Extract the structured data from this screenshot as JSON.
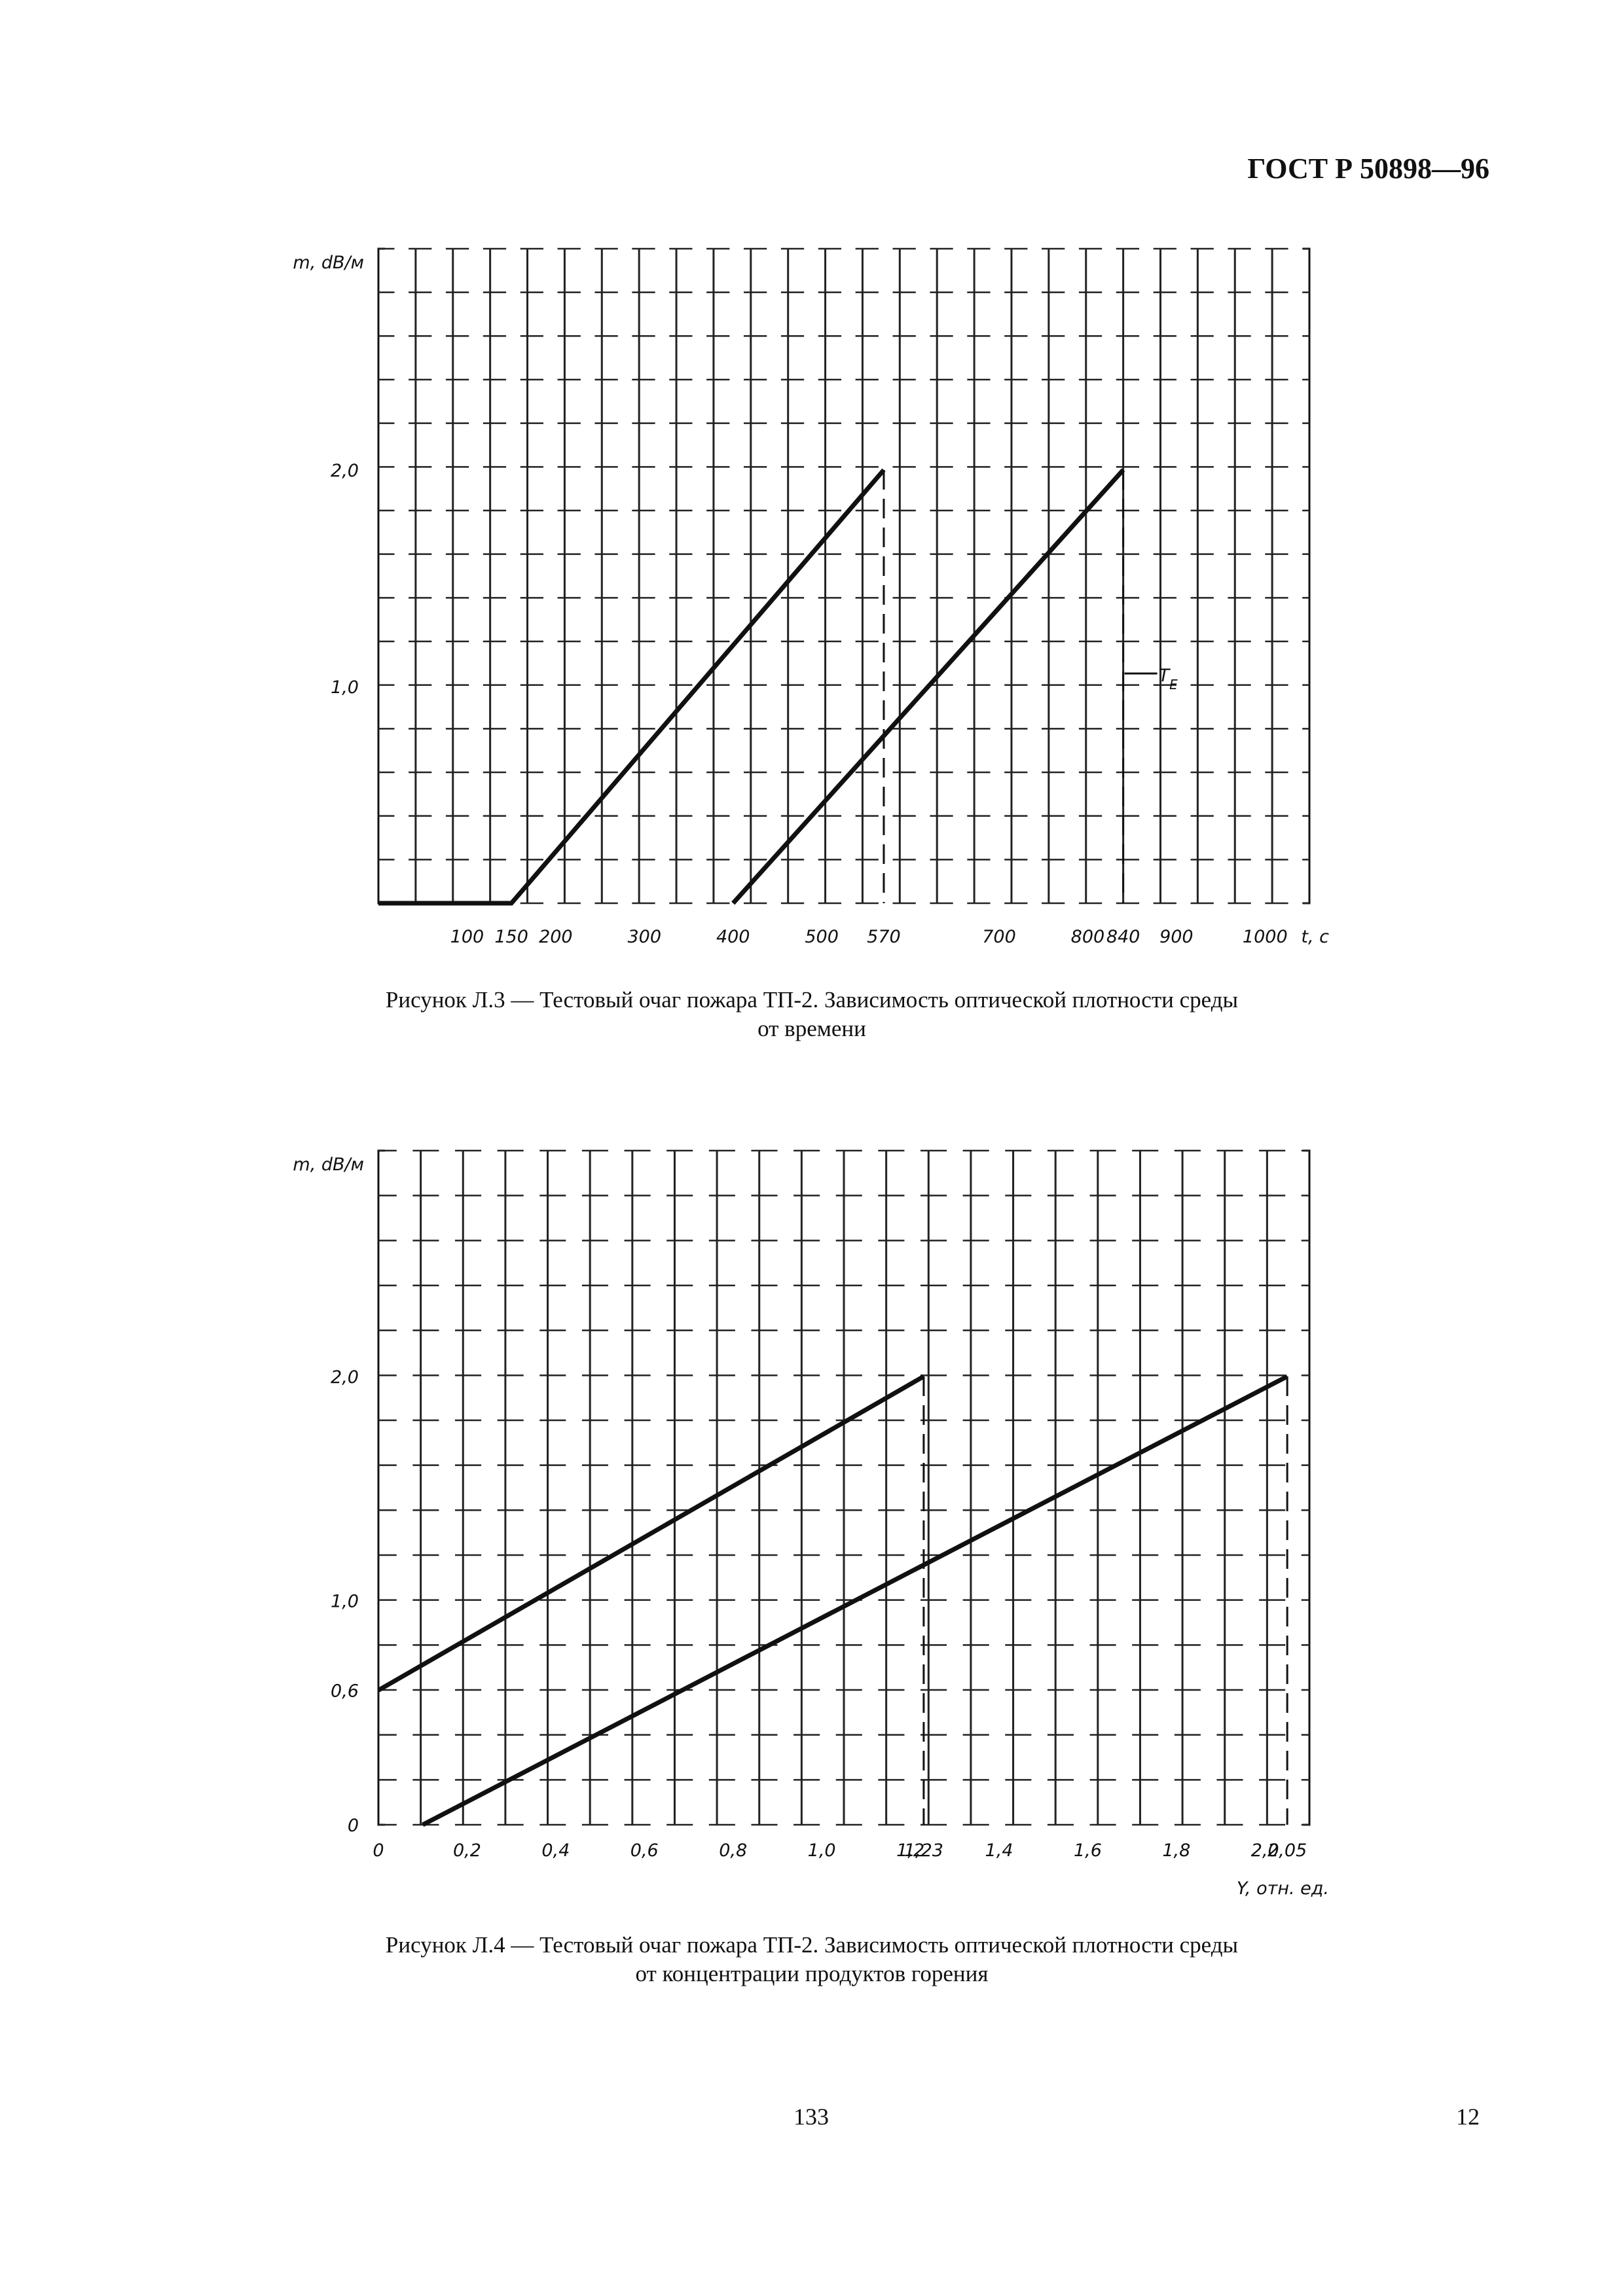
{
  "header": "ГОСТ Р 50898—96",
  "figure1": {
    "caption_line1": "Рисунок Л.3 — Тестовый очаг пожара ТП-2. Зависимость оптической плотности среды",
    "caption_line2": "от времени"
  },
  "figure2": {
    "caption_line1": "Рисунок Л.4 — Тестовый очаг пожара ТП-2. Зависимость оптической плотности среды",
    "caption_line2": "от концентрации продуктов горения"
  },
  "page_number": "133",
  "corner_number": "12",
  "chart_data": [
    {
      "type": "line",
      "title": "",
      "ylabel": "m, dB/м",
      "xlabel": "t, c",
      "xlim": [
        0,
        1050
      ],
      "ylim": [
        0,
        2.0
      ],
      "grid": true,
      "x_ticks": [
        {
          "value": 100,
          "label": "100"
        },
        {
          "value": 150,
          "label": "150"
        },
        {
          "value": 200,
          "label": "200"
        },
        {
          "value": 300,
          "label": "300"
        },
        {
          "value": 400,
          "label": "400"
        },
        {
          "value": 500,
          "label": "500"
        },
        {
          "value": 570,
          "label": "570"
        },
        {
          "value": 700,
          "label": "700"
        },
        {
          "value": 800,
          "label": "800"
        },
        {
          "value": 840,
          "label": "840"
        },
        {
          "value": 900,
          "label": "900"
        },
        {
          "value": 1000,
          "label": "1000"
        }
      ],
      "y_ticks": [
        {
          "value": 1.0,
          "label": "1,0"
        },
        {
          "value": 2.0,
          "label": "2,0"
        }
      ],
      "annotation": {
        "label": "T",
        "subscript": "E",
        "x": 840,
        "y": 1.0
      },
      "series": [
        {
          "x": [
            0,
            150,
            570
          ],
          "y": [
            0,
            0,
            2.0
          ]
        },
        {
          "x": [
            400,
            840
          ],
          "y": [
            0,
            2.0
          ]
        }
      ],
      "dashed_drops": [
        {
          "x": 570,
          "y_from": 2.0,
          "y_to": 0
        },
        {
          "x": 840,
          "y_from": 2.0,
          "y_to": 0
        }
      ]
    },
    {
      "type": "line",
      "title": "",
      "ylabel": "m, dB/м",
      "xlabel": "Y, отн. ед.",
      "xlim": [
        0,
        2.1
      ],
      "ylim": [
        0,
        2.0
      ],
      "grid": true,
      "x_ticks": [
        {
          "value": 0,
          "label": "0"
        },
        {
          "value": 0.2,
          "label": "0,2"
        },
        {
          "value": 0.4,
          "label": "0,4"
        },
        {
          "value": 0.6,
          "label": "0,6"
        },
        {
          "value": 0.8,
          "label": "0,8"
        },
        {
          "value": 1.0,
          "label": "1,0"
        },
        {
          "value": 1.2,
          "label": "1,2"
        },
        {
          "value": 1.23,
          "label": "1,23"
        },
        {
          "value": 1.4,
          "label": "1,4"
        },
        {
          "value": 1.6,
          "label": "1,6"
        },
        {
          "value": 1.8,
          "label": "1,8"
        },
        {
          "value": 2.0,
          "label": "2,0"
        },
        {
          "value": 2.05,
          "label": "2,05"
        }
      ],
      "y_ticks": [
        {
          "value": 0,
          "label": "0"
        },
        {
          "value": 0.6,
          "label": "0,6"
        },
        {
          "value": 1.0,
          "label": "1,0"
        },
        {
          "value": 2.0,
          "label": "2,0"
        }
      ],
      "series": [
        {
          "x": [
            0,
            1.23
          ],
          "y": [
            0.6,
            2.0
          ]
        },
        {
          "x": [
            0.1,
            2.05
          ],
          "y": [
            0,
            2.0
          ]
        }
      ],
      "dashed_drops": [
        {
          "x": 1.23,
          "y_from": 2.0,
          "y_to": 0
        },
        {
          "x": 2.05,
          "y_from": 2.0,
          "y_to": 0
        }
      ]
    }
  ]
}
